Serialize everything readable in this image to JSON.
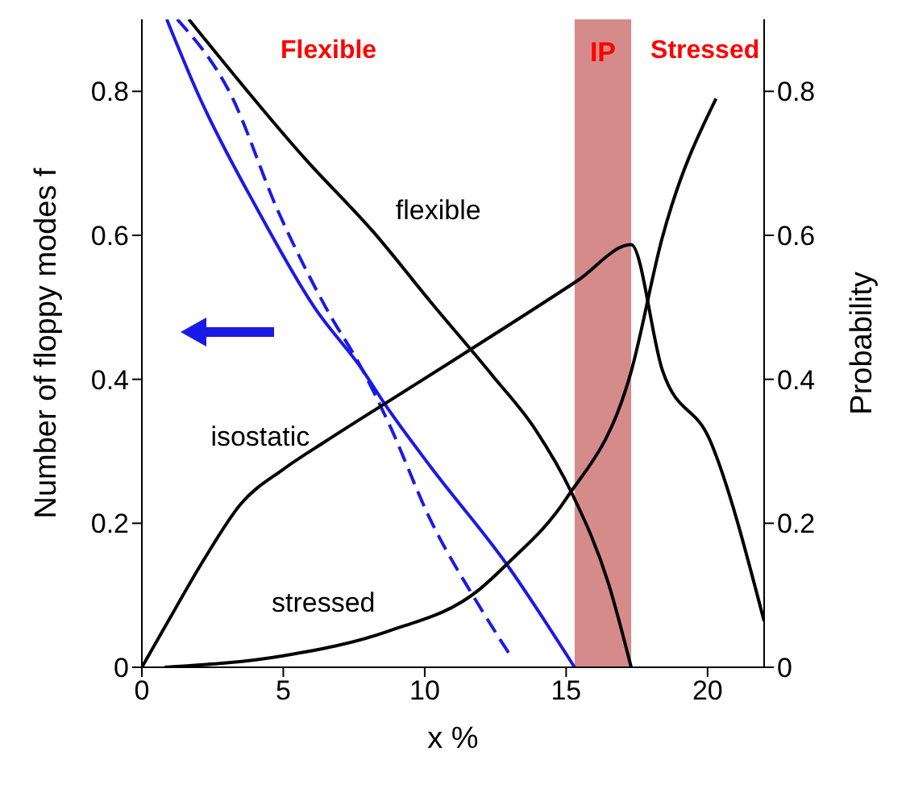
{
  "chart_data": {
    "type": "line",
    "xlabel": "x %",
    "ylabel": "Number of floppy modes f",
    "y2label": "Probability",
    "xlim": [
      0,
      22
    ],
    "xticks": [
      0,
      5,
      10,
      15,
      20
    ],
    "ylim": [
      0,
      0.9
    ],
    "yticks": [
      0,
      0.2,
      0.4,
      0.6,
      0.8
    ],
    "y2lim": [
      0,
      0.9
    ],
    "y2ticks": [
      0,
      0.2,
      0.4,
      0.6,
      0.8
    ],
    "grid": false,
    "legend": false,
    "marker": "none",
    "series": [
      {
        "color": "#1a1ae6",
        "line_style": "solid",
        "x": [
          0.88,
          2.0,
          4.1,
          6.1,
          7.8,
          8.6,
          10.2,
          12.9,
          15.3
        ],
        "values": [
          0.9,
          0.795,
          0.635,
          0.5,
          0.413,
          0.365,
          0.279,
          0.143,
          0
        ]
      },
      {
        "color": "#1a1ae6",
        "line_style": "dashed",
        "x": [
          1.25,
          3.15,
          4.8,
          6.5,
          7.8,
          8.75,
          10.2,
          11.9,
          13.1
        ],
        "values": [
          0.9,
          0.795,
          0.635,
          0.5,
          0.413,
          0.337,
          0.205,
          0.087,
          0.012
        ]
      },
      {
        "name": "flexible",
        "color": "#000000",
        "line_style": "solid",
        "axis": "y2",
        "x": [
          1.66,
          5.8,
          8.2,
          10.2,
          12.4,
          13.9,
          15.2,
          16.5,
          17.3
        ],
        "values": [
          0.9,
          0.705,
          0.604,
          0.508,
          0.405,
          0.331,
          0.242,
          0.116,
          0
        ]
      },
      {
        "name": "isostatic",
        "color": "#000000",
        "line_style": "solid",
        "axis": "y2",
        "x": [
          0,
          0.93,
          2.2,
          3.5,
          5.0,
          6.5,
          8.5,
          11.0,
          15.4,
          17.3,
          18.4,
          20.1,
          22
        ],
        "values": [
          0,
          0.064,
          0.15,
          0.227,
          0.275,
          0.314,
          0.364,
          0.426,
          0.537,
          0.587,
          0.413,
          0.314,
          0.064
        ]
      },
      {
        "name": "stressed",
        "color": "#000000",
        "line_style": "solid",
        "axis": "y2",
        "x": [
          0.8,
          5.0,
          8.7,
          11.9,
          12.9,
          15.0,
          17.3,
          18.4,
          20.3
        ],
        "values": [
          0,
          0.016,
          0.05,
          0.107,
          0.143,
          0.234,
          0.411,
          0.597,
          0.79
        ]
      }
    ],
    "bands": [
      {
        "axis": "x",
        "from": 15.3,
        "to": 17.3,
        "label": "IP",
        "color": "#c86464"
      }
    ],
    "annotations": [
      "Flexible",
      "Stressed"
    ]
  }
}
